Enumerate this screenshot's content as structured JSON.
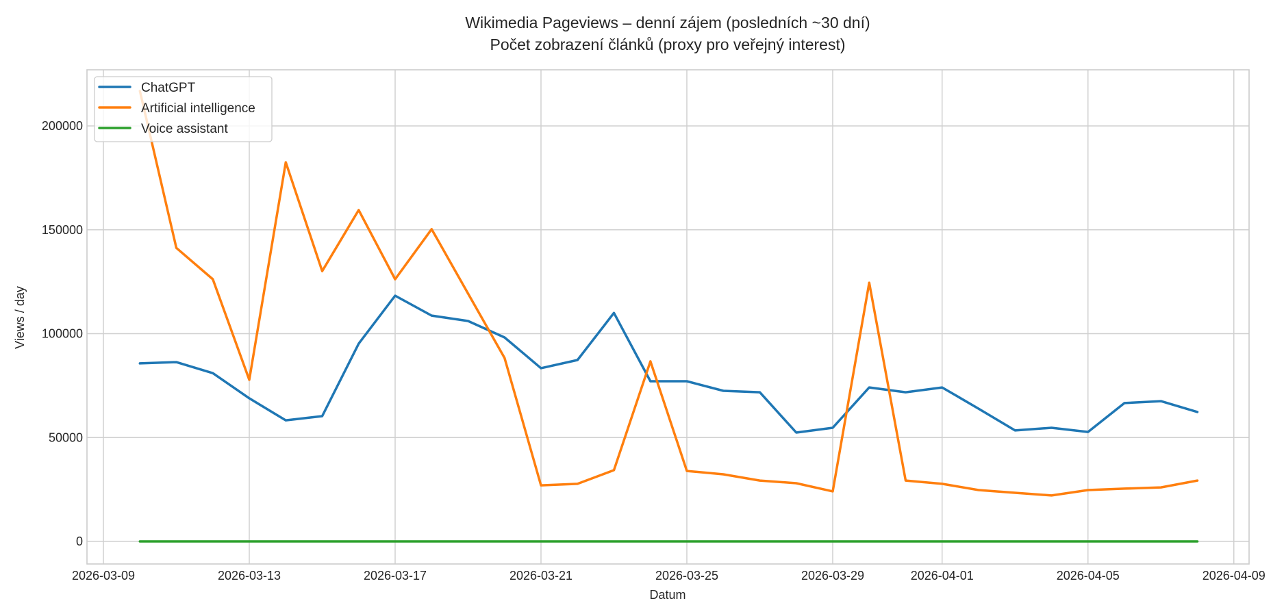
{
  "chart_data": {
    "type": "line",
    "title": "Wikimedia Pageviews – denní zájem (posledních ~30 dní)",
    "subtitle": "Počet zobrazení článků (proxy pro veřejný interest)",
    "xlabel": "Datum",
    "ylabel": "Views / day",
    "ylim": [
      -10000,
      222000
    ],
    "xlim": [
      "2026-03-08T14:00",
      "2026-04-09T10:00"
    ],
    "grid": true,
    "legend_position": "upper left",
    "x_ticks": [
      "2026-03-09",
      "2026-03-13",
      "2026-03-17",
      "2026-03-21",
      "2026-03-25",
      "2026-03-29",
      "2026-04-01",
      "2026-04-05",
      "2026-04-09"
    ],
    "y_ticks": [
      0,
      50000,
      100000,
      150000,
      200000
    ],
    "x": [
      "2026-03-10",
      "2026-03-11",
      "2026-03-12",
      "2026-03-13",
      "2026-03-14",
      "2026-03-15",
      "2026-03-16",
      "2026-03-17",
      "2026-03-18",
      "2026-03-19",
      "2026-03-20",
      "2026-03-21",
      "2026-03-22",
      "2026-03-23",
      "2026-03-24",
      "2026-03-25",
      "2026-03-26",
      "2026-03-27",
      "2026-03-28",
      "2026-03-29",
      "2026-03-30",
      "2026-03-31",
      "2026-04-01",
      "2026-04-02",
      "2026-04-03",
      "2026-04-04",
      "2026-04-05",
      "2026-04-06",
      "2026-04-07",
      "2026-04-08"
    ],
    "series": [
      {
        "name": "ChatGPT",
        "color": "#1f77b4",
        "values": [
          85700,
          86300,
          81000,
          68900,
          58300,
          60300,
          95200,
          118300,
          108700,
          106100,
          98200,
          83400,
          87300,
          110000,
          77100,
          77100,
          72500,
          71800,
          52400,
          54700,
          74100,
          71800,
          74100,
          63900,
          53400,
          54700,
          52700,
          66600,
          67500,
          62300
        ]
      },
      {
        "name": "Artificial intelligence",
        "color": "#ff7f0e",
        "values": [
          216800,
          141300,
          126200,
          77800,
          182500,
          130100,
          159500,
          126200,
          150300,
          119300,
          88300,
          27000,
          27700,
          34300,
          86700,
          33900,
          32300,
          29300,
          28000,
          24100,
          124500,
          29300,
          27700,
          24700,
          23400,
          22100,
          24700,
          25400,
          26000,
          29300
        ]
      },
      {
        "name": "Voice assistant",
        "color": "#2ca02c",
        "values": [
          0,
          0,
          0,
          0,
          0,
          0,
          0,
          0,
          0,
          0,
          0,
          0,
          0,
          0,
          0,
          0,
          0,
          0,
          0,
          0,
          0,
          0,
          0,
          0,
          0,
          0,
          0,
          0,
          0,
          0
        ]
      }
    ]
  },
  "style": {
    "grid_color": "#d0d0d0",
    "spine_color": "#cccccc",
    "text_color": "#262626"
  }
}
